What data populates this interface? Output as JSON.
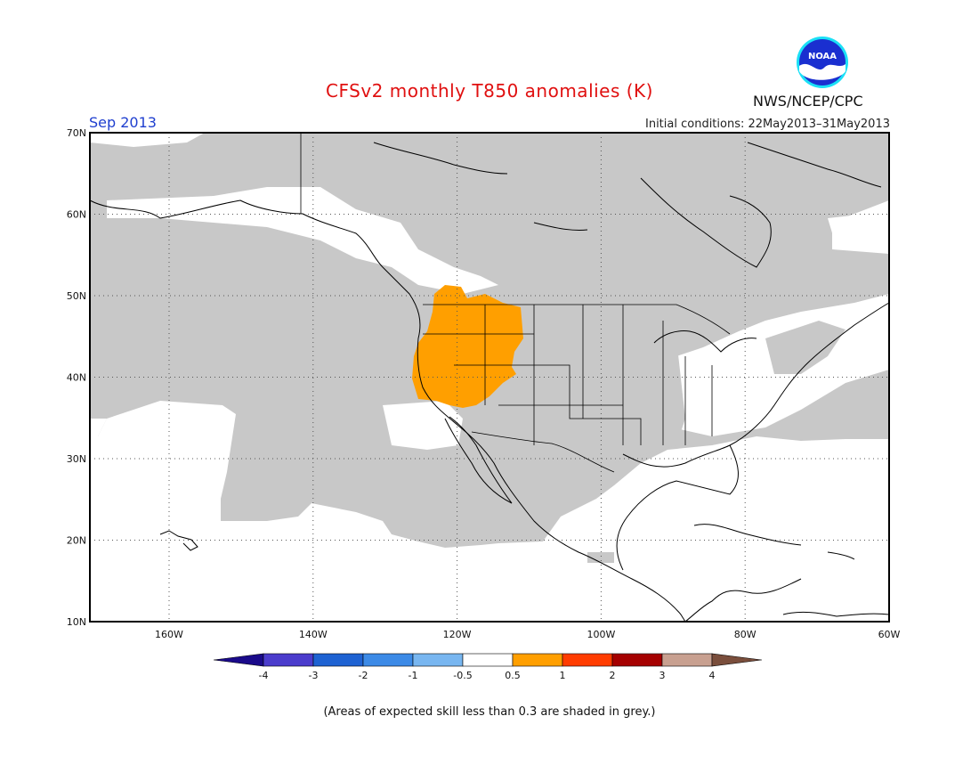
{
  "header": {
    "title": "CFSv2 monthly T850 anomalies (K)",
    "month": "Sep 2013",
    "initial_conditions": "Initial conditions: 22May2013–31May2013",
    "agency": "NWS/NCEP/CPC",
    "logo_text": "NOAA"
  },
  "map": {
    "lat_labels": [
      "70N",
      "60N",
      "50N",
      "40N",
      "30N",
      "20N",
      "10N"
    ],
    "lon_labels": [
      "160W",
      "140W",
      "120W",
      "100W",
      "80W",
      "60W"
    ],
    "lat_range": [
      10,
      70
    ],
    "lon_range": [
      -171,
      -60
    ],
    "grid": "dotted",
    "colors": {
      "grey_low_skill": "#c8c8c8",
      "warm_anomaly": "#ff9f00",
      "coast": "#000000"
    }
  },
  "legend": {
    "labels": [
      "-4",
      "-3",
      "-2",
      "-1",
      "-0.5",
      "0.5",
      "1",
      "2",
      "3",
      "4"
    ],
    "colors": [
      "#1a0a8a",
      "#4b3ccc",
      "#1e62d2",
      "#3c8ae6",
      "#78b6f0",
      "#ffffff",
      "#ff9f00",
      "#ff3c00",
      "#a50000",
      "#c8a090",
      "#7a4e3c"
    ]
  },
  "footnote": "(Areas of expected skill less than 0.3 are shaded in grey.)"
}
